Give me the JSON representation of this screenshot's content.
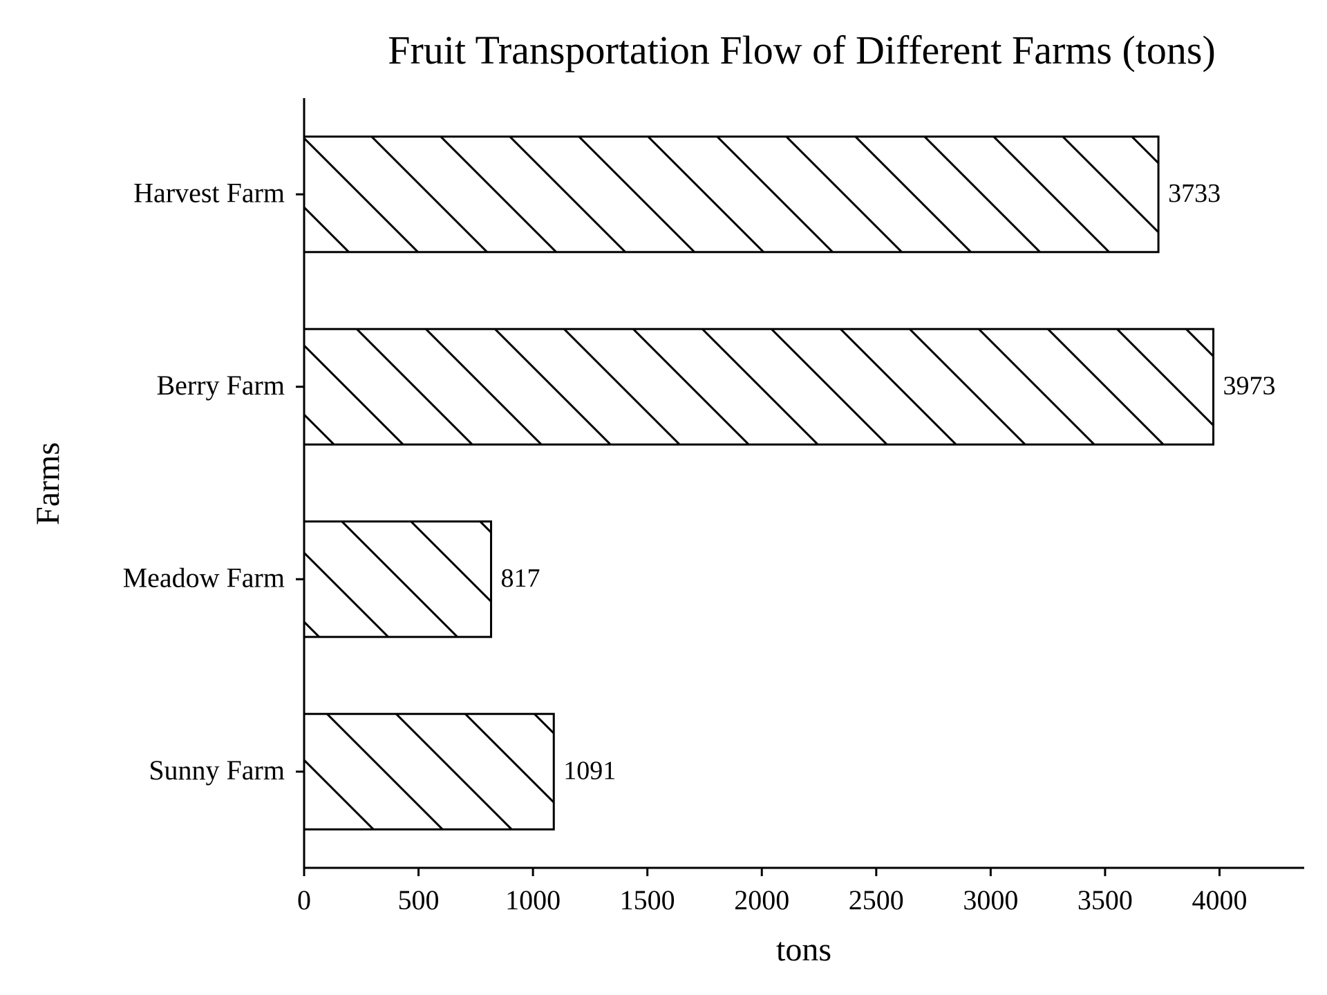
{
  "colors": {
    "background": "#ffffff",
    "bar_edge": "#000000",
    "bar_fill": "#ffffff",
    "hatch": "#000000",
    "text": "#000000"
  },
  "chart_data": {
    "type": "bar",
    "orientation": "horizontal",
    "title": "Fruit Transportation Flow of Different Farms (tons)",
    "xlabel": "tons",
    "ylabel": "Farms",
    "categories": [
      "Harvest Farm",
      "Berry Farm",
      "Meadow Farm",
      "Sunny Farm"
    ],
    "values": [
      3733,
      3973,
      817,
      1091
    ],
    "data_labels": [
      "3733",
      "3973",
      "817",
      "1091"
    ],
    "xlim": [
      0,
      4370
    ],
    "xticks": [
      0,
      500,
      1000,
      1500,
      2000,
      2500,
      3000,
      3500,
      4000
    ],
    "xtick_labels": [
      "0",
      "500",
      "1000",
      "1500",
      "2000",
      "2500",
      "3000",
      "3500",
      "4000"
    ],
    "hatch": "diagonal",
    "grid": false,
    "legend": "none"
  }
}
